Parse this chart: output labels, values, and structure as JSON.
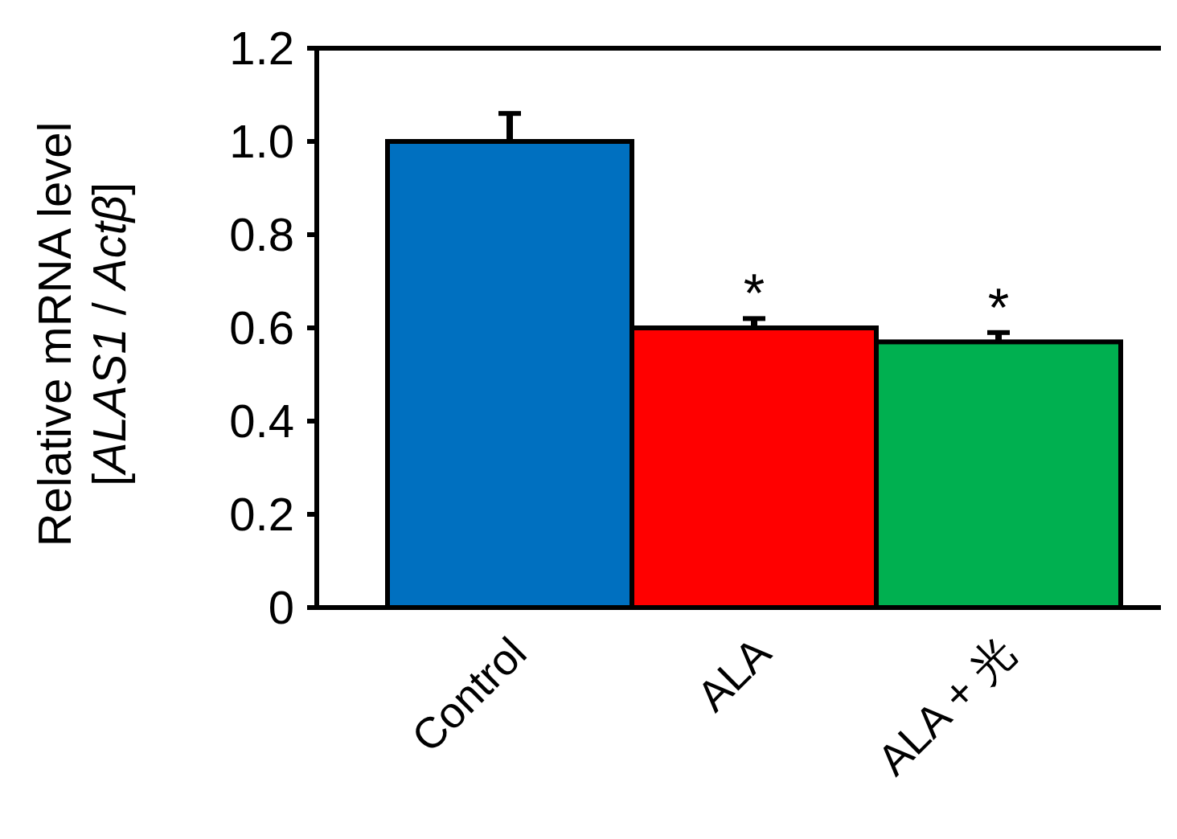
{
  "chart_data": {
    "type": "bar",
    "ylabel": "Relative mRNA level\n[*ALAS1* / *Actβ*]",
    "categories": [
      "Control",
      "ALA",
      "ALA + 光"
    ],
    "values": [
      1.0,
      0.6,
      0.57
    ],
    "colors": [
      "#0070c0",
      "#ff0000",
      "#00b050"
    ],
    "errors": [
      [
        1.0,
        1.06
      ],
      [
        0.6,
        0.62
      ],
      [
        0.57,
        0.59
      ]
    ],
    "ylim": [
      0,
      1.2
    ],
    "yticks": [
      0,
      0.2,
      0.4,
      0.6,
      {
        "value": 0.8,
        "label": "0.8"
      },
      {
        "value": 1.0,
        "label": "1.0"
      },
      1.2
    ],
    "annotations": [
      {
        "text": "*",
        "x": "ALA",
        "y": 0.62
      },
      {
        "text": "*",
        "x": "ALA + 光",
        "y": 0.59
      }
    ]
  }
}
